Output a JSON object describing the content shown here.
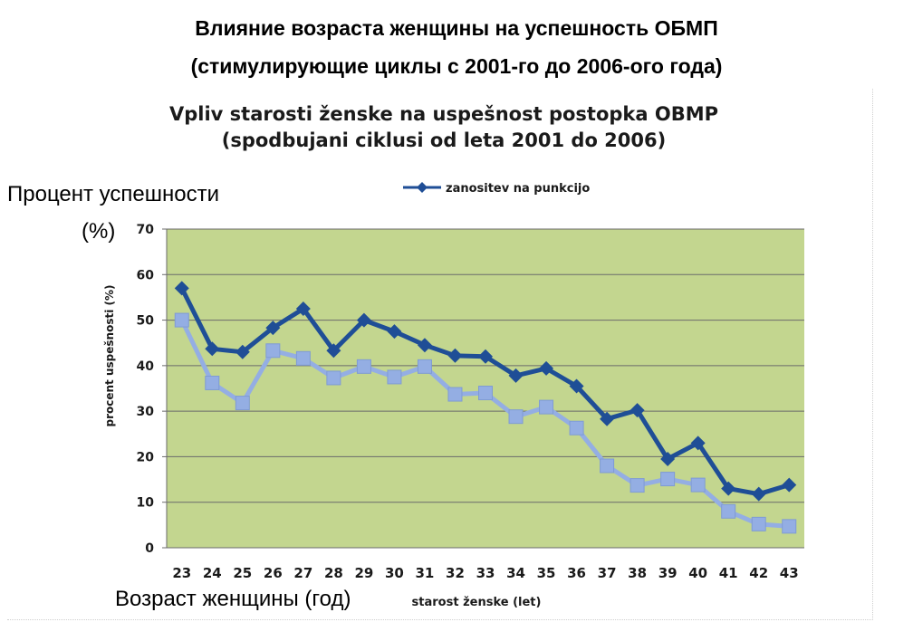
{
  "overlay": {
    "title_line1": "Влияние возраста женщины на успешность ОБМП",
    "title_line2": "(стимулирующие циклы с 2001-го до 2006-ого года)",
    "ylabel_line1": "Процент успешности",
    "ylabel_line2": "(%)",
    "xlabel": "Возраст женщины (год)"
  },
  "colors": {
    "plot_background": "#c3d68f",
    "series_dark": "#1f4e96",
    "series_light": "#94aee3",
    "gridline": "#6b6b6b"
  },
  "chart_data": {
    "type": "line",
    "title_line1": "Vpliv starosti ženske na uspešnost postopka OBMP",
    "title_line2": "(spodbujani ciklusi od leta 2001 do 2006)",
    "xlabel": "starost ženske (let)",
    "ylabel": "procent uspešnosti (%)",
    "ylim": [
      0,
      70
    ],
    "yticks": [
      0,
      10,
      20,
      30,
      40,
      50,
      60,
      70
    ],
    "grid": true,
    "legend": "top",
    "categories": [
      "23",
      "24",
      "25",
      "26",
      "27",
      "28",
      "29",
      "30",
      "31",
      "32",
      "33",
      "34",
      "35",
      "36",
      "37",
      "38",
      "39",
      "40",
      "41",
      "42",
      "43"
    ],
    "series": [
      {
        "name": "zanositev na punkcijo",
        "marker": "diamond",
        "values": [
          57,
          43.7,
          43,
          48.3,
          52.5,
          43.3,
          50,
          47.5,
          44.5,
          42.2,
          42,
          37.8,
          39.4,
          35.5,
          28.3,
          30.2,
          19.5,
          23,
          13,
          11.8,
          13.8
        ]
      },
      {
        "name": "",
        "marker": "square",
        "values": [
          50,
          36.2,
          31.8,
          43.3,
          41.6,
          37.3,
          39.8,
          37.5,
          39.8,
          33.7,
          34,
          28.8,
          30.9,
          26.3,
          18,
          13.7,
          15.1,
          13.8,
          8,
          5.2,
          4.7
        ]
      }
    ]
  }
}
